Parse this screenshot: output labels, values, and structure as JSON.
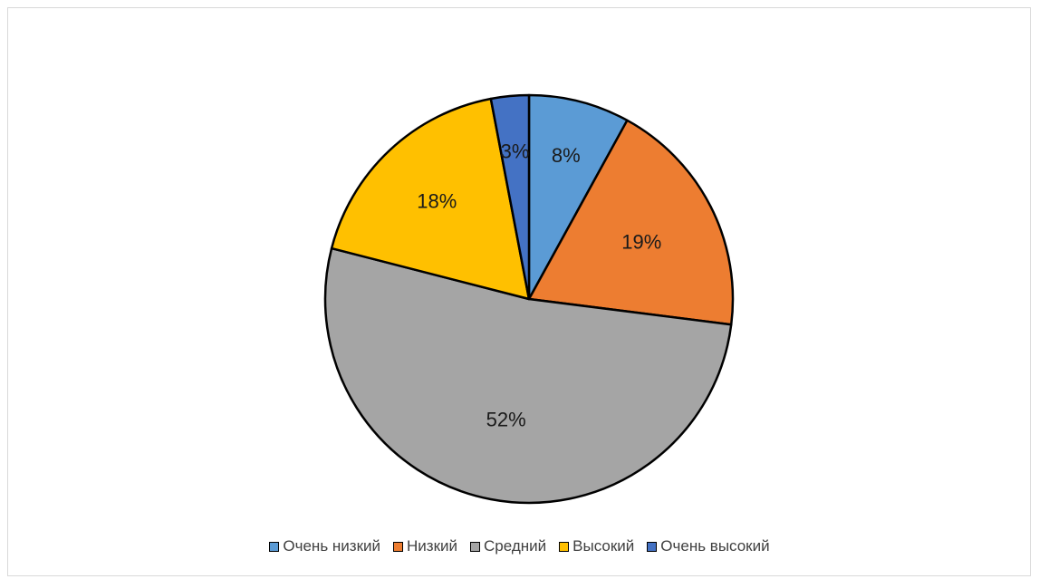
{
  "chart_data": {
    "type": "pie",
    "categories": [
      "Очень низкий",
      "Низкий",
      "Средний",
      "Высокий",
      "Очень высокий"
    ],
    "values": [
      8,
      19,
      52,
      18,
      3
    ],
    "labels": [
      "8%",
      "19%",
      "52%",
      "18%",
      "3%"
    ],
    "colors": [
      "#5b9bd5",
      "#ed7d31",
      "#a5a5a5",
      "#ffc000",
      "#4472c4"
    ],
    "legend": "bottom",
    "title": ""
  }
}
